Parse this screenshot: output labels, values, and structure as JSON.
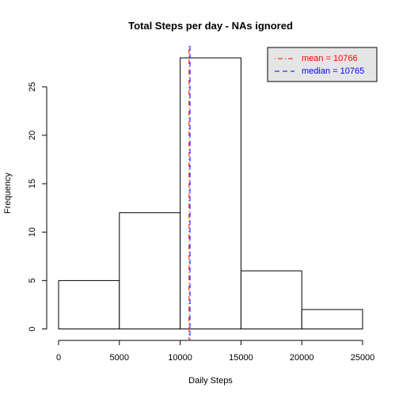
{
  "chart_data": {
    "type": "histogram",
    "title": "Total Steps per day - NAs ignored",
    "xlabel": "Daily Steps",
    "ylabel": "Frequency",
    "bins": [
      {
        "from": 0,
        "to": 5000,
        "count": 5
      },
      {
        "from": 5000,
        "to": 10000,
        "count": 12
      },
      {
        "from": 10000,
        "to": 15000,
        "count": 28
      },
      {
        "from": 15000,
        "to": 20000,
        "count": 6
      },
      {
        "from": 20000,
        "to": 25000,
        "count": 2
      }
    ],
    "xlim": [
      0,
      25000
    ],
    "ylim": [
      0,
      28
    ],
    "xticks": [
      0,
      5000,
      10000,
      15000,
      20000,
      25000
    ],
    "yticks": [
      0,
      5,
      10,
      15,
      20,
      25
    ],
    "bar_fill": "#ffffff",
    "bar_stroke": "#000000",
    "reference_lines": [
      {
        "label": "mean = 10766",
        "value": 10766,
        "color": "#ff0000",
        "dash": "dot-dash"
      },
      {
        "label": "median = 10765",
        "value": 10765,
        "color": "#0000ff",
        "dash": "dashed"
      }
    ],
    "legend": {
      "position": "top-right",
      "background": "#e5e5e5"
    },
    "grid": false
  }
}
